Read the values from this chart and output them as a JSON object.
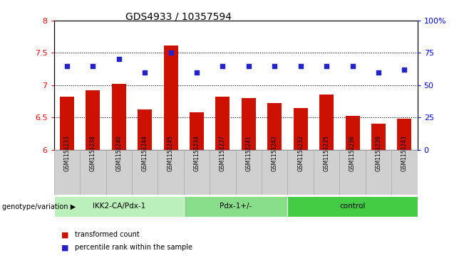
{
  "title": "GDS4933 / 10357594",
  "samples": [
    "GSM1151233",
    "GSM1151238",
    "GSM1151240",
    "GSM1151244",
    "GSM1151245",
    "GSM1151234",
    "GSM1151237",
    "GSM1151241",
    "GSM1151242",
    "GSM1151232",
    "GSM1151235",
    "GSM1151236",
    "GSM1151239",
    "GSM1151243"
  ],
  "transformed_count": [
    6.82,
    6.92,
    7.02,
    6.62,
    7.62,
    6.58,
    6.82,
    6.8,
    6.72,
    6.65,
    6.85,
    6.52,
    6.4,
    6.48
  ],
  "percentile_rank": [
    65,
    65,
    70,
    60,
    75,
    60,
    65,
    65,
    65,
    65,
    65,
    65,
    60,
    62
  ],
  "groups": [
    {
      "label": "IKK2-CA/Pdx-1",
      "start": 0,
      "end": 5,
      "color": "#bbf0bb"
    },
    {
      "label": "Pdx-1+/-",
      "start": 5,
      "end": 9,
      "color": "#88dd88"
    },
    {
      "label": "control",
      "start": 9,
      "end": 14,
      "color": "#44cc44"
    }
  ],
  "ylim_left": [
    6.0,
    8.0
  ],
  "ylim_right": [
    0,
    100
  ],
  "yticks_left": [
    6.0,
    6.5,
    7.0,
    7.5,
    8.0
  ],
  "ytick_labels_left": [
    "6",
    "6.5",
    "7",
    "7.5",
    "8"
  ],
  "yticks_right": [
    0,
    25,
    50,
    75,
    100
  ],
  "ytick_labels_right": [
    "0",
    "25",
    "50",
    "75",
    "100%"
  ],
  "bar_color": "#cc1100",
  "dot_color": "#2222cc",
  "grid_lines": [
    6.5,
    7.0,
    7.5
  ],
  "genotype_label": "genotype/variation",
  "legend_bar": "transformed count",
  "legend_dot": "percentile rank within the sample",
  "bar_width": 0.55,
  "background_color": "#ffffff",
  "sample_box_color": "#d0d0d0",
  "sample_box_edge_color": "#aaaaaa"
}
